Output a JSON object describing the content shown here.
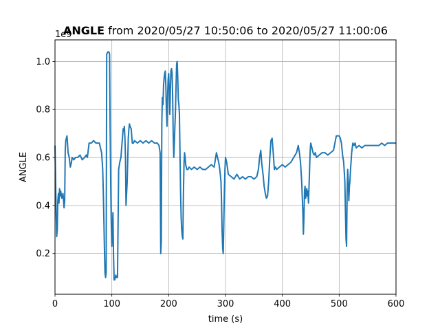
{
  "chart_data": {
    "type": "line",
    "title_bold": "ANGLE",
    "title_rest": " from 2020/05/27 10:50:06 to 2020/05/27 11:00:06",
    "xlabel": "time (s)",
    "ylabel": "ANGLE",
    "y_offset_label": "1e9",
    "xlim": [
      0,
      600
    ],
    "ylim": [
      0.03,
      1.09
    ],
    "x_ticks": [
      0,
      100,
      200,
      300,
      400,
      500,
      600
    ],
    "x_tick_labels": [
      "0",
      "100",
      "200",
      "300",
      "400",
      "500",
      "600"
    ],
    "y_ticks": [
      0.2,
      0.4,
      0.6,
      0.8,
      1.0
    ],
    "y_tick_labels": [
      "0.2",
      "0.4",
      "0.6",
      "0.8",
      "1.0"
    ],
    "grid": true,
    "line_color": "#1f77b4",
    "series": [
      {
        "x": [
          0,
          1,
          2,
          3,
          4,
          5,
          6,
          7,
          8,
          9,
          10,
          12,
          14,
          16,
          17,
          18,
          19,
          20,
          21,
          22,
          23,
          25,
          27,
          29,
          30,
          33,
          36,
          40,
          44,
          48,
          52,
          55,
          57,
          60,
          64,
          68,
          72,
          75,
          78,
          80,
          82,
          84,
          85,
          86,
          87,
          88,
          89,
          90,
          91,
          93,
          95,
          96,
          97,
          98,
          99,
          100,
          101,
          102,
          103,
          104,
          105,
          106,
          107,
          108,
          110,
          112,
          114,
          116,
          118,
          120,
          121,
          122,
          123,
          124,
          125,
          127,
          129,
          130,
          131,
          132,
          134,
          136,
          138,
          140,
          145,
          150,
          155,
          160,
          165,
          170,
          175,
          180,
          183,
          185,
          186,
          187,
          188,
          189,
          190,
          191,
          192,
          193,
          194,
          195,
          196,
          197,
          198,
          199,
          200,
          201,
          202,
          203,
          204,
          205,
          206,
          207,
          208,
          209,
          210,
          211,
          212,
          213,
          214,
          215,
          216,
          217,
          218,
          219,
          220,
          221,
          222,
          223,
          224,
          225,
          226,
          227,
          228,
          229,
          230,
          232,
          234,
          236,
          240,
          245,
          250,
          255,
          260,
          265,
          270,
          275,
          280,
          284,
          286,
          288,
          290,
          292,
          293,
          294,
          295,
          296,
          297,
          298,
          299,
          300,
          302,
          305,
          310,
          315,
          320,
          325,
          330,
          335,
          340,
          345,
          350,
          355,
          358,
          360,
          362,
          364,
          366,
          368,
          370,
          372,
          374,
          376,
          378,
          380,
          382,
          384,
          386,
          388,
          390,
          395,
          400,
          405,
          410,
          415,
          420,
          425,
          428,
          430,
          432,
          434,
          436,
          437,
          438,
          439,
          440,
          441,
          442,
          443,
          444,
          445,
          446,
          447,
          448,
          449,
          450,
          452,
          454,
          456,
          458,
          460,
          465,
          470,
          475,
          480,
          485,
          490,
          495,
          500,
          502,
          504,
          506,
          508,
          510,
          511,
          512,
          513,
          514,
          515,
          516,
          517,
          518,
          519,
          520,
          522,
          524,
          526,
          528,
          530,
          535,
          540,
          545,
          550,
          555,
          560,
          565,
          570,
          575,
          580,
          585,
          590,
          595,
          600
        ],
        "y": [
          0.65,
          0.52,
          0.36,
          0.27,
          0.3,
          0.42,
          0.45,
          0.41,
          0.47,
          0.44,
          0.46,
          0.43,
          0.45,
          0.39,
          0.42,
          0.63,
          0.67,
          0.68,
          0.69,
          0.66,
          0.62,
          0.6,
          0.56,
          0.58,
          0.6,
          0.59,
          0.6,
          0.6,
          0.61,
          0.59,
          0.6,
          0.61,
          0.6,
          0.66,
          0.66,
          0.67,
          0.66,
          0.66,
          0.66,
          0.64,
          0.62,
          0.55,
          0.45,
          0.34,
          0.22,
          0.12,
          0.1,
          0.12,
          1.03,
          1.04,
          1.04,
          1.03,
          0.72,
          0.5,
          0.33,
          0.23,
          0.3,
          0.37,
          0.2,
          0.09,
          0.09,
          0.1,
          0.11,
          0.1,
          0.1,
          0.55,
          0.58,
          0.6,
          0.66,
          0.72,
          0.71,
          0.73,
          0.68,
          0.6,
          0.4,
          0.5,
          0.68,
          0.72,
          0.74,
          0.73,
          0.72,
          0.66,
          0.66,
          0.67,
          0.66,
          0.67,
          0.66,
          0.67,
          0.66,
          0.67,
          0.66,
          0.66,
          0.65,
          0.62,
          0.2,
          0.25,
          0.75,
          0.85,
          0.82,
          0.9,
          0.93,
          0.95,
          0.96,
          0.9,
          0.8,
          0.73,
          0.85,
          0.92,
          0.95,
          0.88,
          0.78,
          0.88,
          0.96,
          0.97,
          0.95,
          0.86,
          0.7,
          0.6,
          0.66,
          0.73,
          0.8,
          0.9,
          0.99,
          1.0,
          0.93,
          0.84,
          0.82,
          0.78,
          0.6,
          0.45,
          0.35,
          0.3,
          0.27,
          0.26,
          0.45,
          0.58,
          0.62,
          0.6,
          0.57,
          0.55,
          0.55,
          0.56,
          0.55,
          0.56,
          0.55,
          0.56,
          0.55,
          0.55,
          0.56,
          0.57,
          0.56,
          0.62,
          0.6,
          0.58,
          0.55,
          0.5,
          0.42,
          0.3,
          0.22,
          0.2,
          0.32,
          0.45,
          0.55,
          0.6,
          0.58,
          0.53,
          0.52,
          0.51,
          0.53,
          0.51,
          0.52,
          0.51,
          0.52,
          0.52,
          0.51,
          0.52,
          0.55,
          0.6,
          0.63,
          0.57,
          0.53,
          0.48,
          0.45,
          0.43,
          0.44,
          0.5,
          0.6,
          0.67,
          0.68,
          0.62,
          0.55,
          0.56,
          0.55,
          0.56,
          0.57,
          0.56,
          0.57,
          0.58,
          0.6,
          0.62,
          0.65,
          0.62,
          0.58,
          0.5,
          0.38,
          0.28,
          0.35,
          0.46,
          0.48,
          0.43,
          0.45,
          0.47,
          0.44,
          0.46,
          0.41,
          0.48,
          0.55,
          0.63,
          0.66,
          0.64,
          0.62,
          0.61,
          0.62,
          0.6,
          0.61,
          0.62,
          0.62,
          0.61,
          0.62,
          0.63,
          0.69,
          0.69,
          0.68,
          0.66,
          0.61,
          0.58,
          0.5,
          0.38,
          0.26,
          0.23,
          0.45,
          0.55,
          0.5,
          0.42,
          0.48,
          0.5,
          0.55,
          0.62,
          0.66,
          0.65,
          0.66,
          0.64,
          0.65,
          0.64,
          0.65,
          0.65,
          0.65,
          0.65,
          0.65,
          0.65,
          0.66,
          0.65,
          0.66,
          0.66,
          0.66,
          0.66
        ]
      }
    ]
  }
}
